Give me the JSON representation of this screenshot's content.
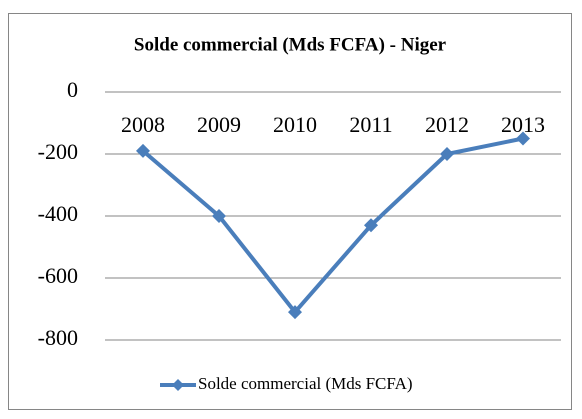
{
  "chart_data": {
    "type": "line",
    "title": "Solde commercial (Mds FCFA) - Niger",
    "categories": [
      "2008",
      "2009",
      "2010",
      "2011",
      "2012",
      "2013"
    ],
    "series": [
      {
        "name": "Solde commercial (Mds FCFA)",
        "color": "#4a7ebb",
        "values": [
          -190,
          -400,
          -710,
          -430,
          -200,
          -150
        ]
      }
    ],
    "ylim": [
      -800,
      0
    ],
    "yticks": [
      0,
      -200,
      -400,
      -600,
      -800
    ],
    "grid": true,
    "legend": "bottom"
  }
}
